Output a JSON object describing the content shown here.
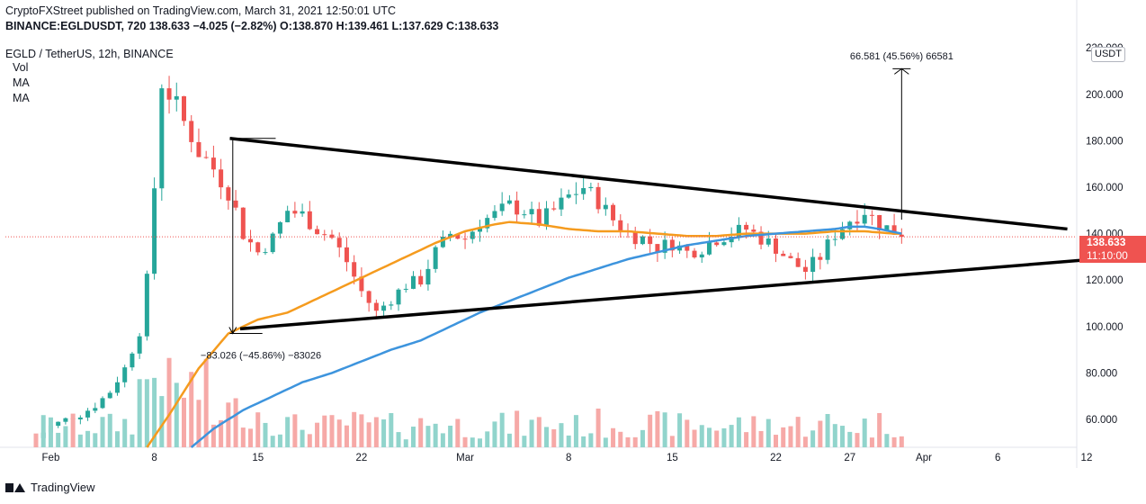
{
  "header": {
    "line1": "CryptoFXStreet published on TradingView.com, March 31, 2021 12:50:01 UTC",
    "symbol": "BINANCE:EGLDUSDT, 720",
    "last": "138.633",
    "change": "−4.025 (−2.82%)",
    "o_label": "O:",
    "o": "138.870",
    "h_label": "H:",
    "h": "139.461",
    "l_label": "L:",
    "l": "137.629",
    "c_label": "C:",
    "c": "138.633"
  },
  "legend": {
    "pair": "EGLD / TetherUS, 12h, BINANCE",
    "items": [
      "Vol",
      "MA",
      "MA"
    ]
  },
  "currency_badge": "USDT",
  "price_tag": {
    "price": "138.633",
    "countdown": "11:10:00"
  },
  "annotations": {
    "measure_up": "66.581 (45.56%) 66581",
    "measure_down": "−83.026 (−45.86%) −83026"
  },
  "footer": {
    "brand": "TradingView"
  },
  "colors": {
    "up": "#26a69a",
    "down": "#ef5350",
    "vol_up": "#91d4cc",
    "vol_down": "#f6a9a7",
    "ma_fast": "#f59b1e",
    "ma_slow": "#3d94dd",
    "trendline": "#000000",
    "grid": "#f0f3fa"
  },
  "chart_data": {
    "type": "candlestick",
    "y_axis": {
      "range": [
        48,
        222
      ],
      "ticks": [
        "60.000",
        "80.000",
        "100.000",
        "120.000",
        "140.000",
        "160.000",
        "180.000",
        "200.000",
        "220.000"
      ]
    },
    "x_axis": {
      "ticks": [
        {
          "label": "Feb",
          "day": 1
        },
        {
          "label": "8",
          "day": 8
        },
        {
          "label": "15",
          "day": 15
        },
        {
          "label": "22",
          "day": 22
        },
        {
          "label": "Mar",
          "day": 29
        },
        {
          "label": "8",
          "day": 36
        },
        {
          "label": "15",
          "day": 43
        },
        {
          "label": "22",
          "day": 50
        },
        {
          "label": "27",
          "day": 55
        },
        {
          "label": "Apr",
          "day": 60
        },
        {
          "label": "6",
          "day": 65
        },
        {
          "label": "12",
          "day": 71
        }
      ]
    },
    "trendlines": [
      {
        "name": "upper",
        "from": [
          13.1,
          181
        ],
        "to": [
          69.7,
          142
        ]
      },
      {
        "name": "lower",
        "from": [
          13.8,
          99
        ],
        "to": [
          73.5,
          130
        ]
      }
    ],
    "candle_anchors": [
      [
        0,
        52
      ],
      [
        1,
        57
      ],
      [
        2,
        60
      ],
      [
        3,
        62
      ],
      [
        4,
        66
      ],
      [
        5,
        72
      ],
      [
        6,
        82
      ],
      [
        7,
        98
      ],
      [
        7.5,
        120
      ],
      [
        8,
        160
      ],
      [
        8.5,
        205
      ],
      [
        9,
        200
      ],
      [
        9.5,
        195
      ],
      [
        10,
        188
      ],
      [
        10.5,
        182
      ],
      [
        11,
        175
      ],
      [
        11.5,
        172
      ],
      [
        12,
        168
      ],
      [
        13,
        158
      ],
      [
        13.5,
        150
      ],
      [
        14,
        140
      ],
      [
        15,
        132
      ],
      [
        16,
        138
      ],
      [
        17,
        150
      ],
      [
        18,
        148
      ],
      [
        19,
        142
      ],
      [
        20,
        138
      ],
      [
        21,
        128
      ],
      [
        22,
        115
      ],
      [
        23,
        106
      ],
      [
        24,
        112
      ],
      [
        25,
        118
      ],
      [
        26,
        120
      ],
      [
        27,
        132
      ],
      [
        28,
        140
      ],
      [
        29,
        138
      ],
      [
        30,
        145
      ],
      [
        31,
        148
      ],
      [
        32,
        152
      ],
      [
        33,
        150
      ],
      [
        34,
        145
      ],
      [
        35,
        150
      ],
      [
        36,
        156
      ],
      [
        37,
        160
      ],
      [
        38,
        154
      ],
      [
        39,
        146
      ],
      [
        40,
        140
      ],
      [
        41,
        138
      ],
      [
        42,
        134
      ],
      [
        43,
        136
      ],
      [
        44,
        132
      ],
      [
        45,
        134
      ],
      [
        46,
        138
      ],
      [
        47,
        140
      ],
      [
        48,
        142
      ],
      [
        49,
        138
      ],
      [
        50,
        134
      ],
      [
        51,
        128
      ],
      [
        52,
        124
      ],
      [
        53,
        130
      ],
      [
        54,
        140
      ],
      [
        55,
        146
      ],
      [
        56,
        150
      ],
      [
        57,
        144
      ],
      [
        58,
        141
      ],
      [
        58.5,
        138.6
      ]
    ],
    "ma_fast_anchors": [
      [
        7.5,
        48
      ],
      [
        9,
        62
      ],
      [
        11,
        82
      ],
      [
        13,
        97
      ],
      [
        15,
        103
      ],
      [
        17,
        106
      ],
      [
        19,
        112
      ],
      [
        21,
        118
      ],
      [
        23,
        124
      ],
      [
        25,
        130
      ],
      [
        27,
        136
      ],
      [
        29,
        141
      ],
      [
        31,
        144
      ],
      [
        32,
        145
      ],
      [
        34,
        144
      ],
      [
        36,
        142
      ],
      [
        38,
        141
      ],
      [
        40,
        141
      ],
      [
        42,
        140
      ],
      [
        44,
        139
      ],
      [
        46,
        139
      ],
      [
        48,
        140
      ],
      [
        50,
        140
      ],
      [
        52,
        140
      ],
      [
        54,
        141
      ],
      [
        56,
        141
      ],
      [
        58,
        140
      ],
      [
        58.5,
        140
      ]
    ],
    "ma_slow_anchors": [
      [
        10.5,
        48
      ],
      [
        12,
        56
      ],
      [
        14,
        64
      ],
      [
        16,
        70
      ],
      [
        18,
        76
      ],
      [
        20,
        80
      ],
      [
        22,
        85
      ],
      [
        24,
        90
      ],
      [
        26,
        94
      ],
      [
        28,
        100
      ],
      [
        30,
        106
      ],
      [
        32,
        111
      ],
      [
        34,
        116
      ],
      [
        36,
        121
      ],
      [
        38,
        125
      ],
      [
        40,
        129
      ],
      [
        42,
        132
      ],
      [
        44,
        135
      ],
      [
        46,
        137
      ],
      [
        48,
        139
      ],
      [
        50,
        140
      ],
      [
        52,
        141
      ],
      [
        54,
        142
      ],
      [
        55,
        143
      ],
      [
        56,
        143
      ],
      [
        57,
        142
      ],
      [
        58.5,
        140
      ]
    ]
  }
}
